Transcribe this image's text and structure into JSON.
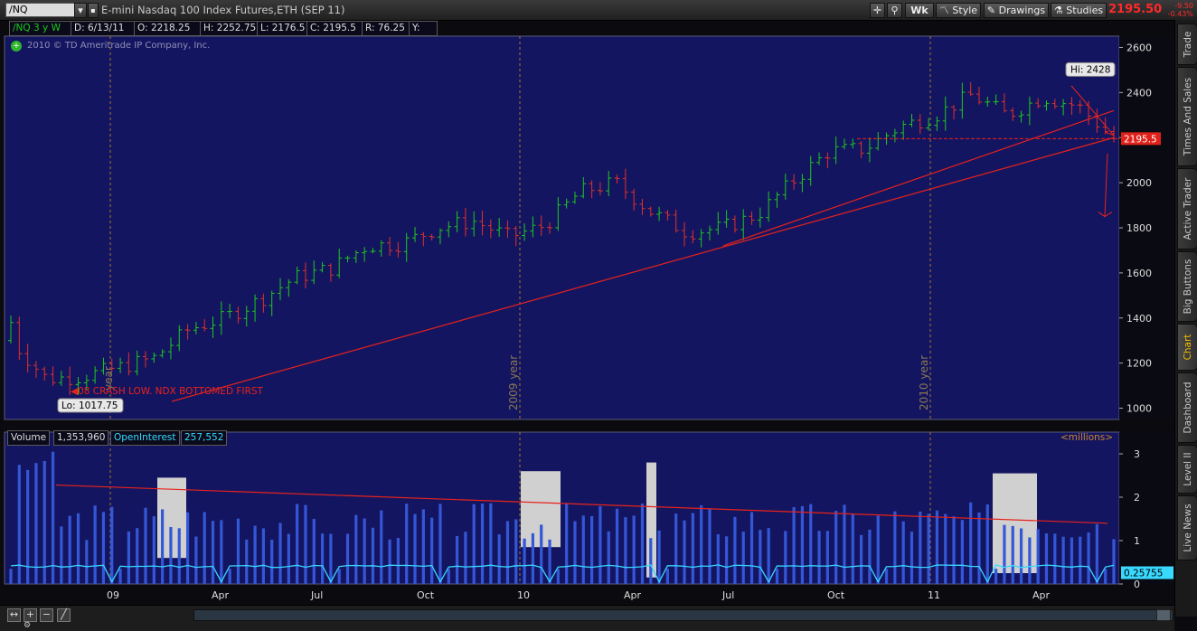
{
  "toolbar": {
    "symbol": "/NQ",
    "title": "E-mini Nasdaq 100 Index Futures,ETH (SEP 11)",
    "wk": "Wk",
    "style": "Style",
    "drawings": "Drawings",
    "studies": "Studies",
    "last_price": "2195.50",
    "change_1": "-9.50",
    "change_2": "-0.43%"
  },
  "info": {
    "chart_id": "/NQ 3 y W",
    "date": "D: 6/13/11",
    "open": "O: 2218.25",
    "high": "H: 2252.75",
    "low": "L: 2176.5",
    "close": "C: 2195.5",
    "range": "R: 76.25",
    "y": "Y:",
    "copyright": "2010 © TD Ameritrade IP Company, Inc."
  },
  "price_chart": {
    "y_ticks": [
      "2600",
      "2400",
      "2200",
      "2000",
      "1800",
      "1600",
      "1400",
      "1200",
      "1000"
    ],
    "year_markers": [
      "2009 year",
      "2010 year"
    ],
    "partial_year_marker": "year",
    "hi_label": "Hi: 2428",
    "lo_label": "Lo: 1017.75",
    "annotation": "08 CRASH LOW. NDX BOTTOMED FIRST",
    "price_label": "2195.5",
    "colors": {
      "background": "#141560",
      "up": "#1ec81e",
      "down": "#e0302a",
      "line": "#e8221b",
      "grid": "#a07b30"
    }
  },
  "volume_panel": {
    "volume_label": "Volume",
    "volume_value": "1,353,960",
    "oi_label": "OpenInterest",
    "oi_value": "257,552",
    "units": "<millions>",
    "y_ticks": [
      "3",
      "2",
      "1",
      "0"
    ],
    "oi_last": "0.25755",
    "x_ticks": [
      "09",
      "Apr",
      "Jul",
      "Oct",
      "10",
      "Apr",
      "Jul",
      "Oct",
      "11",
      "Apr"
    ]
  },
  "side_tabs": [
    "Trade",
    "Times And Sales",
    "Active Trader",
    "Big Buttons",
    "Chart",
    "Dashboard",
    "Level II",
    "Live News"
  ],
  "active_tab": "Chart",
  "chart_data": [
    {
      "type": "ohlc",
      "series": [
        {
          "name": "/NQ 3 y W"
        }
      ],
      "timeframe": "weekly",
      "ylim": [
        950,
        2650
      ],
      "x": [
        "2008-11",
        "2008-12",
        "2009-01",
        "2009-02",
        "2009-03",
        "2009-04",
        "2009-05",
        "2009-06",
        "2009-07",
        "2009-08",
        "2009-09",
        "2009-10",
        "2009-11",
        "2009-12",
        "2010-01",
        "2010-02",
        "2010-03",
        "2010-04",
        "2010-05",
        "2010-06",
        "2010-07",
        "2010-08",
        "2010-09",
        "2010-10",
        "2010-11",
        "2010-12",
        "2011-01",
        "2011-02",
        "2011-03",
        "2011-04",
        "2011-05",
        "2011-06"
      ],
      "close": [
        1300,
        1130,
        1140,
        1180,
        1220,
        1350,
        1400,
        1480,
        1580,
        1620,
        1720,
        1730,
        1800,
        1830,
        1760,
        1810,
        1960,
        2000,
        1870,
        1780,
        1800,
        1860,
        2010,
        2140,
        2150,
        2250,
        2300,
        2390,
        2300,
        2380,
        2340,
        2195.5
      ],
      "hi": 2428,
      "lo": 1017.75
    },
    {
      "type": "bar",
      "series": [
        {
          "name": "Volume"
        },
        {
          "name": "OpenInterest"
        }
      ],
      "ylim": [
        0,
        3.5
      ],
      "last_volume": 1353960,
      "last_open_interest": 257552
    }
  ]
}
